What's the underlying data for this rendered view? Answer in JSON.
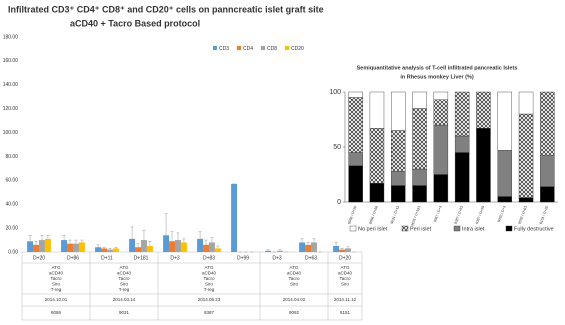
{
  "chart_data": [
    {
      "type": "bar",
      "title": "Infiltrated CD3⁺ CD4⁺ CD8⁺ and CD20⁺ cells on panncreatic islet graft site",
      "subtitle": "aCD40 + Tacro Based protocol",
      "categories": [
        "D+20",
        "D+86",
        "D+11",
        "D+181",
        "D+3",
        "D+83",
        "D+99",
        "D+3",
        "D+63",
        "D+20"
      ],
      "series": [
        {
          "name": "CD3",
          "color": "#5b9bd5",
          "values": [
            9,
            10,
            4,
            11,
            14,
            11,
            57,
            1,
            8,
            5
          ],
          "errors": [
            5,
            4,
            2,
            10,
            18,
            6,
            0,
            1,
            3,
            3
          ]
        },
        {
          "name": "CD4",
          "color": "#ed7d31",
          "values": [
            6,
            7,
            3,
            4,
            9,
            6,
            0,
            0,
            6,
            2
          ],
          "errors": [
            3,
            3,
            1,
            3,
            8,
            4,
            0,
            0,
            2,
            1
          ]
        },
        {
          "name": "CD8",
          "color": "#a5a5a5",
          "values": [
            10,
            7,
            2,
            10,
            10,
            8,
            0,
            1,
            8,
            3
          ],
          "errors": [
            4,
            3,
            1,
            8,
            6,
            4,
            0,
            1,
            3,
            2
          ]
        },
        {
          "name": "CD20",
          "color": "#ffc000",
          "values": [
            11,
            8,
            3,
            5,
            8,
            3,
            0,
            0,
            0,
            0
          ],
          "errors": [
            3,
            2,
            1,
            4,
            3,
            2,
            0,
            0,
            0,
            0
          ]
        }
      ],
      "groups": [
        {
          "protocol": [
            "ATG",
            "aCD40",
            "Tacro",
            "Siro",
            "T-reg"
          ],
          "date": "2014.10.01",
          "id": "8086"
        },
        {
          "protocol": [
            "ATG",
            "aCD40",
            "Tacro",
            "Siro",
            "T-reg"
          ],
          "date": "2014.03.14",
          "id": "9031"
        },
        {
          "protocol": [
            "ATG",
            "aCD40",
            "Tacro",
            "Siro",
            "T-reg"
          ],
          "date": "2014.06.23",
          "id": "9387"
        },
        {
          "protocol": [
            "ATG",
            "aCD40",
            "Tacro",
            "Siro"
          ],
          "date": "2014.04.02",
          "id": "9092"
        },
        {
          "protocol": [
            "ATG",
            "aCD40",
            "Tacro",
            "Siro"
          ],
          "date": "2014.11.12",
          "id": "8151"
        }
      ],
      "ylim": [
        0,
        180
      ],
      "yticks": [
        {
          "value": 0,
          "label": "0.00"
        },
        {
          "value": 20,
          "label": "20.00"
        },
        {
          "value": 40,
          "label": "40.00"
        },
        {
          "value": 60,
          "label": "60.00"
        },
        {
          "value": 80,
          "label": "80.00"
        },
        {
          "value": 100,
          "label": "100.00"
        },
        {
          "value": 120,
          "label": "120.00"
        },
        {
          "value": 140,
          "label": "140.00"
        },
        {
          "value": 160,
          "label": "160.00"
        },
        {
          "value": 180,
          "label": "180.00"
        }
      ],
      "legend": "top-right"
    },
    {
      "type": "stacked-bar",
      "title": "Semiquantitative analysis of T-cell infiltrated pancreatic Islets",
      "subtitle": "in Rhesus monkey Liver (%)",
      "categories": [
        "8086 / D+20",
        "8086 / D+86",
        "9031 / D+11",
        "9031 / D+181",
        "9387 / D+3",
        "9387 / D+83",
        "9387 / D+99",
        "9092 / D+3",
        "9092 / D+63",
        "8151 / D+20"
      ],
      "series": [
        {
          "name": "No peri Islet",
          "color": "#ffffff",
          "hatch": false,
          "values": [
            5,
            33,
            35,
            15,
            7,
            0,
            0,
            53,
            20,
            0
          ]
        },
        {
          "name": "Peri islet",
          "color": "#ffffff",
          "hatch": true,
          "values": [
            50,
            50,
            37,
            55,
            23,
            40,
            33,
            0,
            76,
            58
          ]
        },
        {
          "name": "Intra islet",
          "color": "#808080",
          "hatch": false,
          "values": [
            12,
            0,
            13,
            15,
            45,
            15,
            0,
            42,
            0,
            28
          ]
        },
        {
          "name": "Fully destructive",
          "color": "#000000",
          "hatch": false,
          "values": [
            33,
            17,
            15,
            15,
            25,
            45,
            67,
            5,
            4,
            14
          ]
        }
      ],
      "ylim": [
        0,
        100
      ],
      "yticks": [
        0,
        50,
        100
      ],
      "legend": "bottom"
    }
  ]
}
